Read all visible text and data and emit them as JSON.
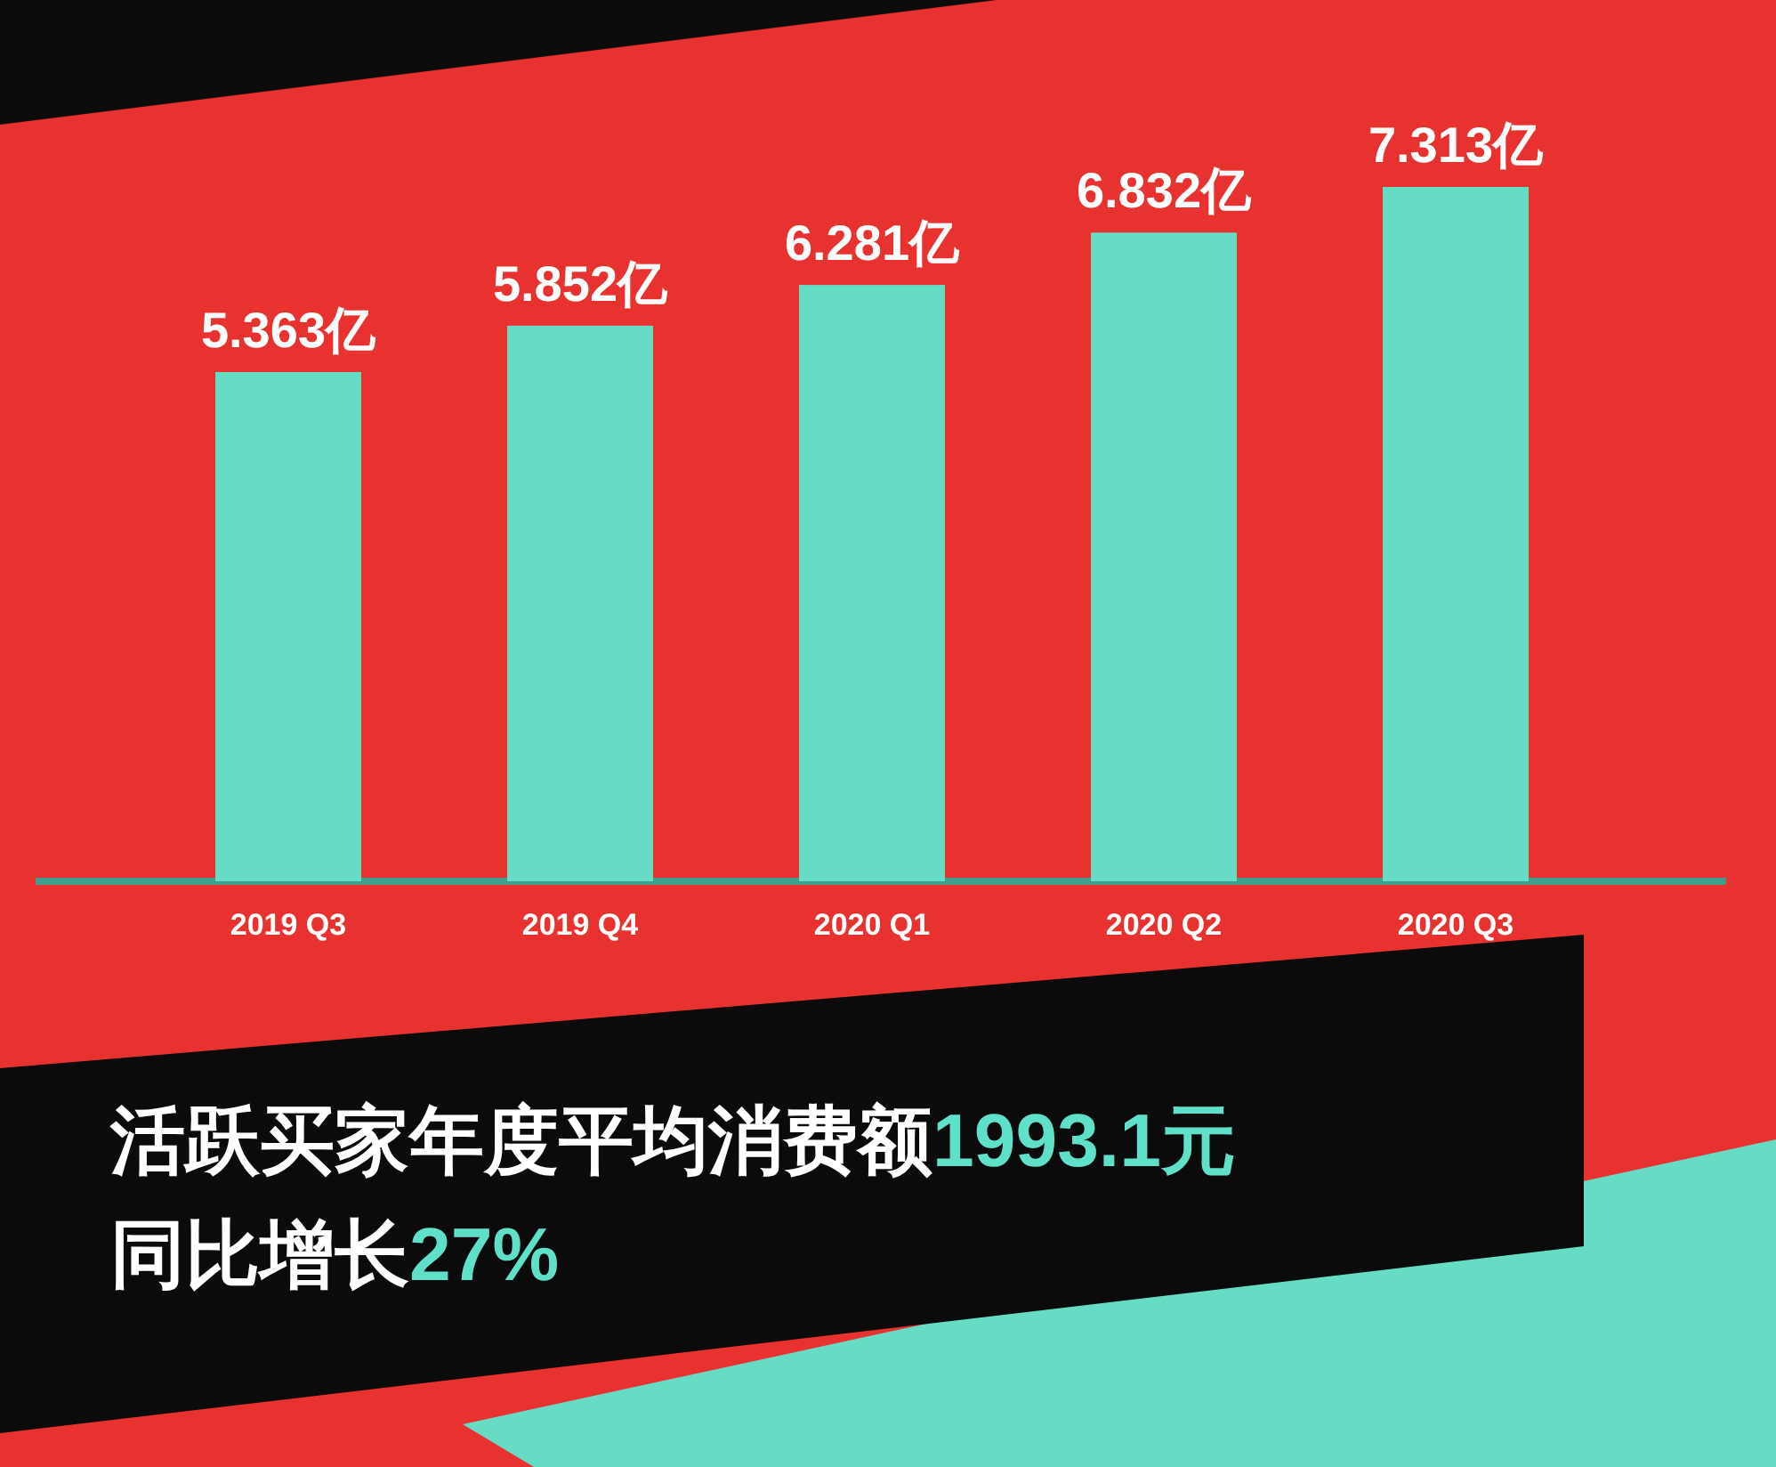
{
  "chart_data": {
    "type": "bar",
    "categories": [
      "2019 Q3",
      "2019 Q4",
      "2020 Q1",
      "2020 Q2",
      "2020 Q3"
    ],
    "values": [
      5.363,
      5.852,
      6.281,
      6.832,
      7.313
    ],
    "value_labels": [
      "5.363亿",
      "5.852亿",
      "6.281亿",
      "6.832亿",
      "7.313亿"
    ],
    "color": "#66dcc5",
    "annotations": [
      "活跃买家年度平均消费额1993.1元",
      "同比增长27%"
    ]
  }
}
